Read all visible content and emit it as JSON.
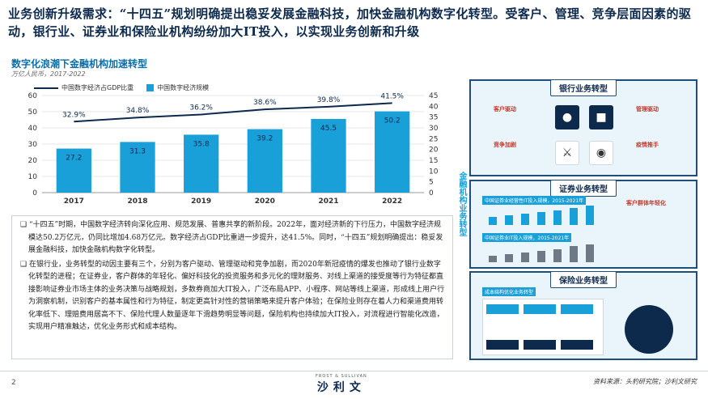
{
  "header": {
    "title": "业务创新升级需求：“十四五”规划明确提出稳妥发展金融科技，加快金融机构数字化转型。受客户、管理、竞争层面因素的驱动，银行业、证券业和保险业机构纷纷加大IT投入，以实现业务创新和升级"
  },
  "chart": {
    "title": "数字化浪潮下金融机构加速转型",
    "subtitle": "万亿人民币，2017-2022"
  },
  "chart_data": {
    "type": "bar",
    "categories": [
      "2017",
      "2018",
      "2019",
      "2020",
      "2021",
      "2022"
    ],
    "series": [
      {
        "name": "中国数字经济规模",
        "type": "bar",
        "axis": "left",
        "values": [
          27.2,
          31.3,
          35.8,
          39.2,
          45.5,
          50.2
        ],
        "labels": [
          "27.2",
          "31.3",
          "35.8",
          "39.2",
          "45.5",
          "50.2"
        ]
      },
      {
        "name": "中国数字经济占GDP比重",
        "type": "line",
        "axis": "right",
        "values": [
          32.9,
          34.8,
          36.2,
          38.6,
          39.8,
          41.5
        ],
        "labels": [
          "32.9%",
          "34.8%",
          "36.2%",
          "38.6%",
          "39.8%",
          "41.5%"
        ]
      }
    ],
    "ylim_left": [
      0,
      60
    ],
    "ylim_right": [
      0,
      45
    ],
    "yticks_left": [
      "0",
      "10",
      "20",
      "30",
      "40",
      "50",
      "60"
    ],
    "yticks_right": [
      "0",
      "5",
      "10",
      "15",
      "20",
      "25",
      "30",
      "35",
      "40",
      "45"
    ],
    "colors": {
      "bar": "#1aa0d8",
      "line": "#0d2a4d"
    },
    "grid": true,
    "legend_position": "top-left"
  },
  "body": {
    "para1": "“十四五”时期，中国数字经济转向深化应用、规范发展、普惠共享的新阶段。2022年，面对经济新的下行压力，中国数字经济规模达50.2万亿元，仍同比增加4.68万亿元。数字经济占GDP比重进一步提升，达41.5%。同时，“十四五”规划明确提出：稳妥发展金融科技，加快金融机构数字化转型。",
    "para2": "在银行业，业务转型的动因主要有三个，分别为客户驱动、管理驱动和竞争加剧，而2020年新冠疫情的爆发也推动了银行业数字化转型的进程；在证券业，客户群体的年轻化、偏好科技化的投资服务和多元化的理财服务、对线上渠道的接受度等行为特征都直接影响证券业市场主体的业务决策与战略规划，多数券商加大IT投入，广泛布局APP、小程序、网站等线上渠道，形成线上用户行为洞察机制，识别客户的基本属性和行为特征，制定更高针对性的营销策略来提升客户体验；在保险业则存在着人力和渠道费用转化率低下、理赔费用居高不下、保险代理人数量逐年下滑趋势明显等问题，保险机构也持续加大IT投入，对流程进行智能化改造，实现用户精准触达，优化业务形式和成本结构。"
  },
  "side": {
    "vertical_label": "金融机构业务转型",
    "bank": {
      "title": "银行业务转型",
      "drivers": [
        "客户驱动",
        "管理驱动",
        "竞争加剧",
        "疫情推手"
      ]
    },
    "securities": {
      "title": "证券业务转型",
      "chart1": "中国证券业经营性IT投入规模，2015-2021年",
      "chart2": "中国证券业IT投入规模，2015-2021年",
      "note": "客户群体年轻化"
    },
    "insurance": {
      "title": "保险业务转型",
      "chart": "成本结构优化业务转型"
    }
  },
  "footer": {
    "page": "2",
    "brand_en": "FROST & SULLIVAN",
    "brand_cn": "沙利文",
    "source": "资料来源：头豹研究院；沙利文研究"
  }
}
